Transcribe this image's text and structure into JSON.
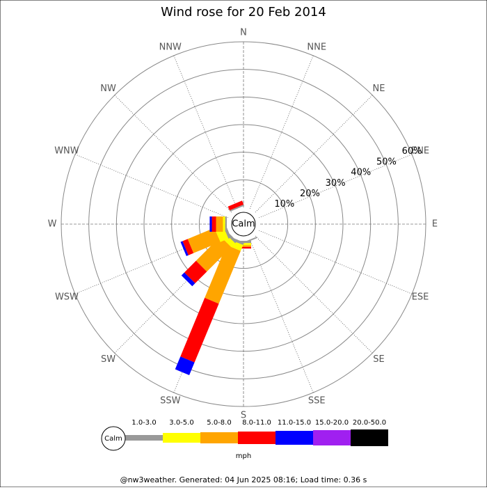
{
  "chart_data": {
    "type": "windrose",
    "title": "Wind rose for 20 Feb 2014",
    "directions": [
      "N",
      "NNE",
      "NE",
      "ENE",
      "E",
      "ESE",
      "SE",
      "SSE",
      "S",
      "SSW",
      "SW",
      "WSW",
      "W",
      "WNW",
      "NW",
      "NNW"
    ],
    "series": [
      {
        "name": "1.0-3.0",
        "color": "#999999",
        "values": [
          0,
          0,
          0,
          0,
          0,
          0,
          0,
          0.5,
          0.8,
          1,
          1,
          1,
          0.6,
          0,
          0,
          0.5
        ]
      },
      {
        "name": "3.0-5.0",
        "color": "#ffff00",
        "values": [
          0,
          0,
          0,
          0,
          0,
          0,
          0,
          0,
          0.8,
          2.3,
          2,
          3.2,
          0.8,
          0,
          0,
          0
        ]
      },
      {
        "name": "5.0-8.0",
        "color": "#ffa500",
        "values": [
          0,
          0,
          0,
          0,
          0,
          0,
          0,
          0,
          0.6,
          20.7,
          12.5,
          10.5,
          2.5,
          0,
          0,
          0
        ]
      },
      {
        "name": "8.0-11.0",
        "color": "#ff0000",
        "values": [
          0,
          0,
          0,
          0,
          0,
          0,
          0,
          0,
          0.6,
          23,
          6,
          2,
          1.5,
          0,
          0,
          1.5
        ]
      },
      {
        "name": "11.0-15.0",
        "color": "#0000ff",
        "values": [
          0,
          0,
          0,
          0,
          0,
          0,
          0,
          0,
          0,
          5,
          1.5,
          0.8,
          0.8,
          0,
          0,
          0
        ]
      },
      {
        "name": "15.0-20.0",
        "color": "#a020f0",
        "values": [
          0,
          0,
          0,
          0,
          0,
          0,
          0,
          0,
          0,
          0,
          0,
          0,
          0,
          0,
          0,
          0
        ]
      },
      {
        "name": "20.0-50.0",
        "color": "#000000",
        "values": [
          0,
          0,
          0,
          0,
          0,
          0,
          0,
          0,
          0,
          0,
          0,
          0,
          0,
          0,
          0,
          0
        ]
      }
    ],
    "rlim": [
      0,
      60
    ],
    "rticks": [
      {
        "value": 10,
        "label": "10%"
      },
      {
        "value": 20,
        "label": "20%"
      },
      {
        "value": 30,
        "label": "30%"
      },
      {
        "value": 40,
        "label": "40%"
      },
      {
        "value": 50,
        "label": "50%"
      },
      {
        "value": 60,
        "label": "60%"
      }
    ],
    "calm_label": "Calm",
    "unit": "mph"
  },
  "footer": "@nw3weather. Generated: 04 Jun 2025 08:16; Load time: 0.36 s"
}
